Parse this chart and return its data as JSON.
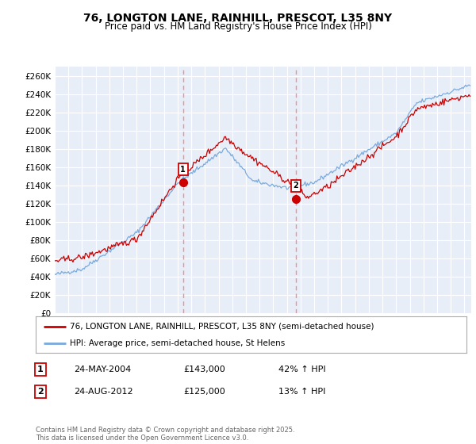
{
  "title": "76, LONGTON LANE, RAINHILL, PRESCOT, L35 8NY",
  "subtitle": "Price paid vs. HM Land Registry's House Price Index (HPI)",
  "ylabel_ticks": [
    "£0",
    "£20K",
    "£40K",
    "£60K",
    "£80K",
    "£100K",
    "£120K",
    "£140K",
    "£160K",
    "£180K",
    "£200K",
    "£220K",
    "£240K",
    "£260K"
  ],
  "ytick_vals": [
    0,
    20000,
    40000,
    60000,
    80000,
    100000,
    120000,
    140000,
    160000,
    180000,
    200000,
    220000,
    240000,
    260000
  ],
  "ylim": [
    0,
    270000
  ],
  "xlim_start": 1995.0,
  "xlim_end": 2025.5,
  "red_line_label": "76, LONGTON LANE, RAINHILL, PRESCOT, L35 8NY (semi-detached house)",
  "blue_line_label": "HPI: Average price, semi-detached house, St Helens",
  "marker1_x": 2004.4,
  "marker1_y": 143000,
  "marker2_x": 2012.65,
  "marker2_y": 125000,
  "marker1_label": "1",
  "marker2_label": "2",
  "footer": "Contains HM Land Registry data © Crown copyright and database right 2025.\nThis data is licensed under the Open Government Licence v3.0.",
  "bg_color": "#ffffff",
  "plot_bg_color": "#e8eef8",
  "grid_color": "#ffffff",
  "red_color": "#cc0000",
  "blue_color": "#7aaadd",
  "dashed_red": "#ff8888"
}
